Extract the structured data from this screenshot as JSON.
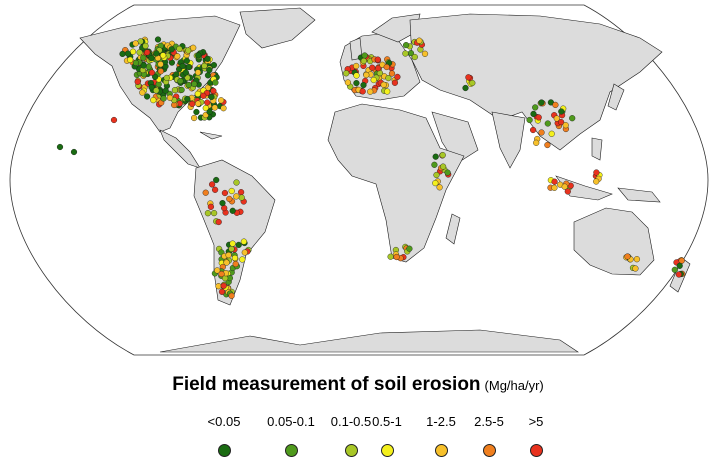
{
  "legend": {
    "title": "Field measurement of soil erosion",
    "unit": "(Mg/ha/yr)",
    "classes": [
      {
        "label": "<0.05",
        "color": "#1a6b12"
      },
      {
        "label": "0.05-0.1",
        "color": "#4f9a1c"
      },
      {
        "label": "0.1-0.5",
        "color": "#a8c726"
      },
      {
        "label": "0.5-1",
        "color": "#f4f01c"
      },
      {
        "label": "1-2.5",
        "color": "#f7c02a"
      },
      {
        "label": "2.5-5",
        "color": "#f07f1e"
      },
      {
        "label": ">5",
        "color": "#e8321e"
      }
    ]
  },
  "map": {
    "projection": "Robinson",
    "land_color": "#dcdcdc",
    "border_color": "#1a1a1a"
  }
}
